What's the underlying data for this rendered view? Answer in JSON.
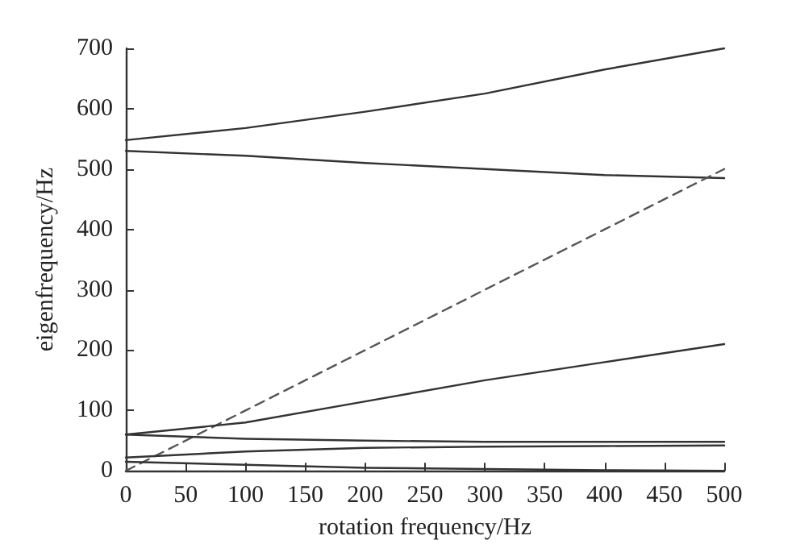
{
  "chart_data": {
    "type": "line",
    "xlabel": "rotation frequency/Hz",
    "ylabel": "eigenfrequency/Hz",
    "x": [
      0,
      100,
      200,
      300,
      400,
      500
    ],
    "series": [
      {
        "color": "#333333",
        "values": [
          548,
          568,
          595,
          625,
          665,
          700
        ]
      },
      {
        "color": "#333333",
        "values": [
          530,
          522,
          510,
          500,
          490,
          485
        ]
      },
      {
        "color": "#555555",
        "line_style": "dashed",
        "values": [
          0,
          100,
          200,
          300,
          400,
          500
        ]
      },
      {
        "color": "#333333",
        "values": [
          60,
          80,
          115,
          150,
          180,
          210
        ]
      },
      {
        "color": "#333333",
        "values": [
          60,
          53,
          50,
          48,
          48,
          48
        ]
      },
      {
        "color": "#333333",
        "values": [
          22,
          32,
          38,
          40,
          41,
          42
        ]
      },
      {
        "color": "#333333",
        "values": [
          15,
          10,
          5,
          3,
          1,
          0
        ]
      }
    ],
    "xlim": [
      0,
      500
    ],
    "xticks": [
      0,
      50,
      100,
      150,
      200,
      250,
      300,
      350,
      400,
      450,
      500
    ],
    "ylim": [
      0,
      700
    ],
    "yticks": [
      0,
      100,
      200,
      300,
      400,
      500,
      600,
      700
    ],
    "grid": false,
    "marker": "none",
    "line_style": "solid"
  }
}
